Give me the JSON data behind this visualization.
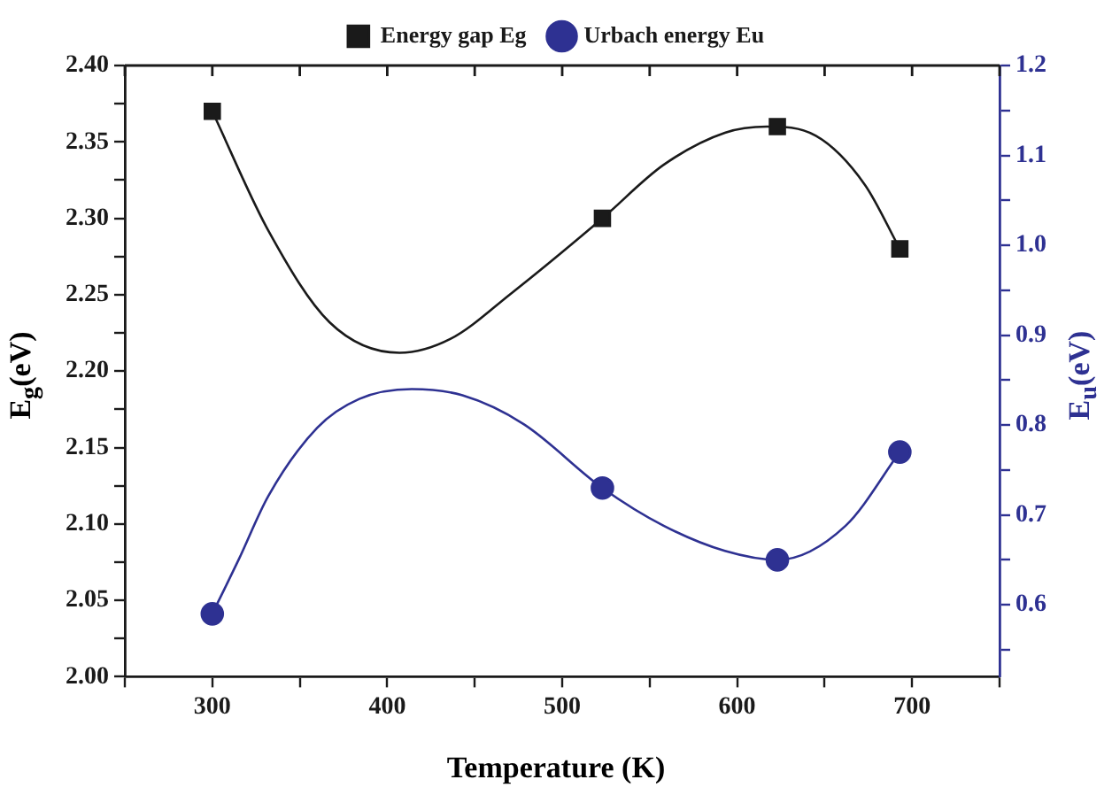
{
  "chart_data": {
    "type": "scatter",
    "xlabel": "Temperature (K)",
    "ylabel": "E$_{g}$(eV)",
    "y2label": "E$_{u}$(eV)",
    "xlim": [
      250,
      750
    ],
    "xticks": [
      {
        "value": 250,
        "label": null
      },
      300,
      {
        "value": 350,
        "label": null
      },
      400,
      {
        "value": 450,
        "label": null
      },
      500,
      {
        "value": 550,
        "label": null
      },
      600,
      {
        "value": 650,
        "label": null
      },
      700,
      {
        "value": 750,
        "label": null
      }
    ],
    "ylim": [
      2.0,
      2.4
    ],
    "yticks": [
      {
        "value": 2.0,
        "label": "2.00"
      },
      {
        "value": 2.025,
        "label": null
      },
      {
        "value": 2.05,
        "label": "2.05"
      },
      {
        "value": 2.075,
        "label": null
      },
      {
        "value": 2.1,
        "label": "2.10"
      },
      {
        "value": 2.125,
        "label": null
      },
      {
        "value": 2.15,
        "label": "2.15"
      },
      {
        "value": 2.175,
        "label": null
      },
      {
        "value": 2.2,
        "label": "2.20"
      },
      {
        "value": 2.225,
        "label": null
      },
      {
        "value": 2.25,
        "label": "2.25"
      },
      {
        "value": 2.275,
        "label": null
      },
      {
        "value": 2.3,
        "label": "2.30"
      },
      {
        "value": 2.325,
        "label": null
      },
      {
        "value": 2.35,
        "label": "2.35"
      },
      {
        "value": 2.375,
        "label": null
      },
      {
        "value": 2.4,
        "label": "2.40"
      }
    ],
    "y2lim": [
      0.52,
      1.2
    ],
    "y2ticks": [
      {
        "value": 0.55,
        "label": null
      },
      0.6,
      {
        "value": 0.65,
        "label": null
      },
      0.7,
      {
        "value": 0.75,
        "label": null
      },
      0.8,
      {
        "value": 0.85,
        "label": null
      },
      0.9,
      {
        "value": 0.95,
        "label": null
      },
      {
        "value": 1.0,
        "label": "1.0"
      },
      {
        "value": 1.05,
        "label": null
      },
      1.1,
      {
        "value": 1.15,
        "label": null
      },
      1.2
    ],
    "grid": false,
    "legend": "top",
    "series": [
      {
        "name": "Energy gap Eg",
        "type": "scatter",
        "marker": "square",
        "color": "#1a1a1a",
        "x": [
          300,
          523,
          623,
          693
        ],
        "values": [
          2.37,
          2.3,
          2.36,
          2.28
        ]
      },
      {
        "name": "Urbach energy Eu",
        "type": "scatter",
        "marker": "circle",
        "axis": "y2",
        "color": "#2e3192",
        "x": [
          300,
          523,
          623,
          693
        ],
        "values": [
          0.59,
          0.73,
          0.65,
          0.77
        ]
      },
      {
        "type": "line",
        "marker": "none",
        "color": "#1a1a1a",
        "x": [
          300,
          332,
          367,
          407,
          436,
          471,
          523,
          558,
          593,
          617,
          645,
          673,
          693
        ],
        "values": [
          2.37,
          2.292,
          2.232,
          2.212,
          2.221,
          2.251,
          2.3,
          2.335,
          2.356,
          2.36,
          2.354,
          2.322,
          2.28
        ]
      },
      {
        "type": "line",
        "marker": "none",
        "axis": "y2",
        "color": "#2e3192",
        "x": [
          300,
          315,
          332,
          360,
          384,
          414,
          443,
          478,
          523,
          558,
          593,
          623,
          662,
          693
        ],
        "values": [
          0.59,
          0.65,
          0.721,
          0.797,
          0.829,
          0.84,
          0.833,
          0.801,
          0.73,
          0.688,
          0.66,
          0.65,
          0.688,
          0.77
        ]
      }
    ]
  }
}
